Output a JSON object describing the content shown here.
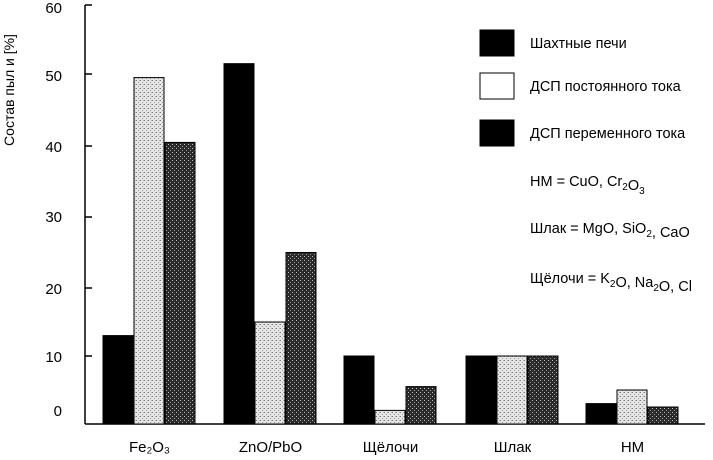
{
  "chart_data": {
    "type": "bar",
    "ylabel": "Состав пыл и [%]",
    "ylim": [
      0,
      60
    ],
    "yticks": [
      0,
      10,
      20,
      30,
      40,
      50,
      60
    ],
    "categories": [
      "Fe₂O₃",
      "ZnO/PbO",
      "Щёлочи",
      "Шлак",
      "НМ"
    ],
    "series": [
      {
        "name": "Шахтные печи",
        "values": [
          13,
          51.5,
          10,
          10,
          3
        ],
        "pattern": "solid-black"
      },
      {
        "name": "ДСП постоянного тока",
        "values": [
          49.5,
          15,
          2,
          10,
          5
        ],
        "pattern": "light-stipple"
      },
      {
        "name": "ДСП переменного тока",
        "values": [
          40.5,
          25,
          5.5,
          10,
          2.5
        ],
        "pattern": "dark-crosshatch"
      }
    ],
    "legend_position": "top-right",
    "notes": [
      {
        "prefix": "НМ = CuO, Cr",
        "sub": "2",
        "mid": "O",
        "sub2": "3",
        "rest": ""
      },
      {
        "prefix": "Шлак = MgO, SiO",
        "sub": "2",
        "mid": ", CaO",
        "sub2": "",
        "rest": ""
      },
      {
        "prefix": "Щёлочи = K",
        "sub": "2",
        "mid": "O, Na",
        "sub2": "2",
        "rest": "O, Cl"
      }
    ],
    "grid": false
  }
}
